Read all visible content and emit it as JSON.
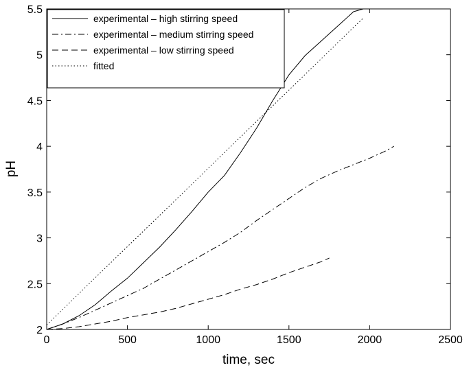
{
  "chart_data": {
    "type": "line",
    "title": "",
    "xlabel": "time,  sec",
    "ylabel": "pH",
    "xlim": [
      0,
      2500
    ],
    "ylim": [
      2,
      5.5
    ],
    "xticks": [
      0,
      500,
      1000,
      1500,
      2000,
      2500
    ],
    "yticks": [
      2,
      2.5,
      3,
      3.5,
      4,
      4.5,
      5,
      5.5
    ],
    "xtick_labels": [
      "0",
      "500",
      "1000",
      "1500",
      "2000",
      "2500"
    ],
    "ytick_labels": [
      "2",
      "2.5",
      "3",
      "3.5",
      "4",
      "4.5",
      "5",
      "5.5"
    ],
    "grid": false,
    "legend_position": "top-left",
    "series": [
      {
        "name": "experimental – high stirring speed",
        "line_style": "solid",
        "x": [
          0,
          100,
          200,
          300,
          400,
          500,
          600,
          700,
          800,
          900,
          1000,
          1100,
          1200,
          1300,
          1400,
          1500,
          1600,
          1700,
          1800,
          1900,
          1960,
          2000
        ],
        "y": [
          2.0,
          2.06,
          2.15,
          2.27,
          2.42,
          2.56,
          2.73,
          2.9,
          3.09,
          3.29,
          3.5,
          3.68,
          3.93,
          4.2,
          4.5,
          4.78,
          4.99,
          5.15,
          5.31,
          5.47,
          5.5,
          5.5
        ]
      },
      {
        "name": "experimental – medium stirring speed",
        "line_style": "dashdot",
        "x": [
          0,
          100,
          200,
          300,
          400,
          500,
          600,
          700,
          800,
          900,
          1000,
          1100,
          1200,
          1300,
          1400,
          1500,
          1600,
          1700,
          1800,
          1900,
          2000,
          2100,
          2150
        ],
        "y": [
          2.0,
          2.06,
          2.13,
          2.21,
          2.29,
          2.37,
          2.45,
          2.55,
          2.65,
          2.75,
          2.85,
          2.95,
          3.06,
          3.19,
          3.31,
          3.43,
          3.55,
          3.65,
          3.73,
          3.8,
          3.87,
          3.95,
          4.0
        ]
      },
      {
        "name": "experimental – low stirring speed",
        "line_style": "dashed",
        "x": [
          0,
          100,
          200,
          300,
          400,
          500,
          600,
          700,
          800,
          900,
          1000,
          1100,
          1200,
          1300,
          1400,
          1500,
          1600,
          1700,
          1750
        ],
        "y": [
          2.0,
          2.01,
          2.03,
          2.06,
          2.09,
          2.13,
          2.16,
          2.19,
          2.23,
          2.28,
          2.33,
          2.38,
          2.44,
          2.49,
          2.55,
          2.62,
          2.68,
          2.74,
          2.78
        ]
      },
      {
        "name": "fitted",
        "line_style": "dotted",
        "x": [
          0,
          1960
        ],
        "y": [
          2.05,
          5.4
        ]
      }
    ]
  }
}
